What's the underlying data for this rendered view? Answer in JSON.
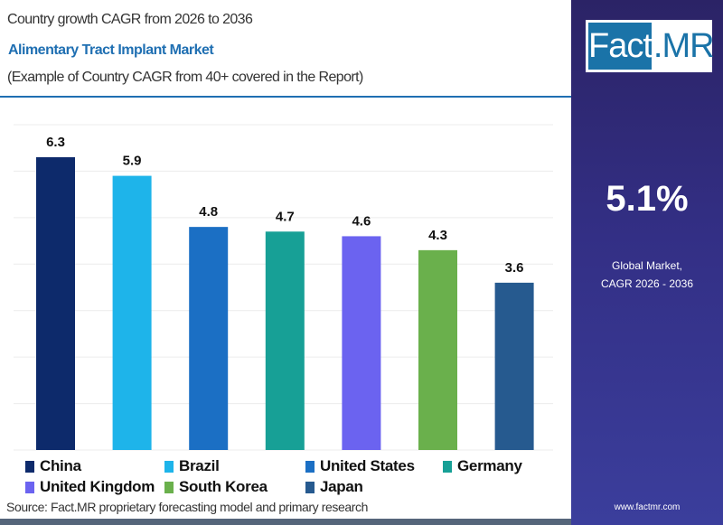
{
  "header": {
    "line1": "Country growth CAGR from 2026 to 2036",
    "title": "Alimentary Tract Implant Market",
    "subtitle": "(Example of Country CAGR from 40+ covered in the Report)"
  },
  "chart_data": {
    "type": "bar",
    "categories": [
      "China",
      "Brazil",
      "United States",
      "Germany",
      "United Kingdom",
      "South Korea",
      "Japan"
    ],
    "values": [
      6.3,
      5.9,
      4.8,
      4.7,
      4.6,
      4.3,
      3.6
    ],
    "data_labels": [
      "6.3",
      "5.9",
      "4.8",
      "4.7",
      "4.6",
      "4.3",
      "3.6"
    ],
    "colors": [
      "#0d2a6b",
      "#1eb4ea",
      "#1b6fc4",
      "#17a096",
      "#6b63f0",
      "#6ab04c",
      "#265a8f"
    ],
    "ylim": [
      0,
      7
    ],
    "grid": true,
    "legend": "bottom"
  },
  "source": "Source: Fact.MR proprietary forecasting model and primary research",
  "panel": {
    "logo_a": "Fact",
    "logo_b": ".MR",
    "value": "5.1%",
    "label1": "Global Market,",
    "label2": "CAGR 2026 - 2036",
    "url": "www.factmr.com"
  }
}
